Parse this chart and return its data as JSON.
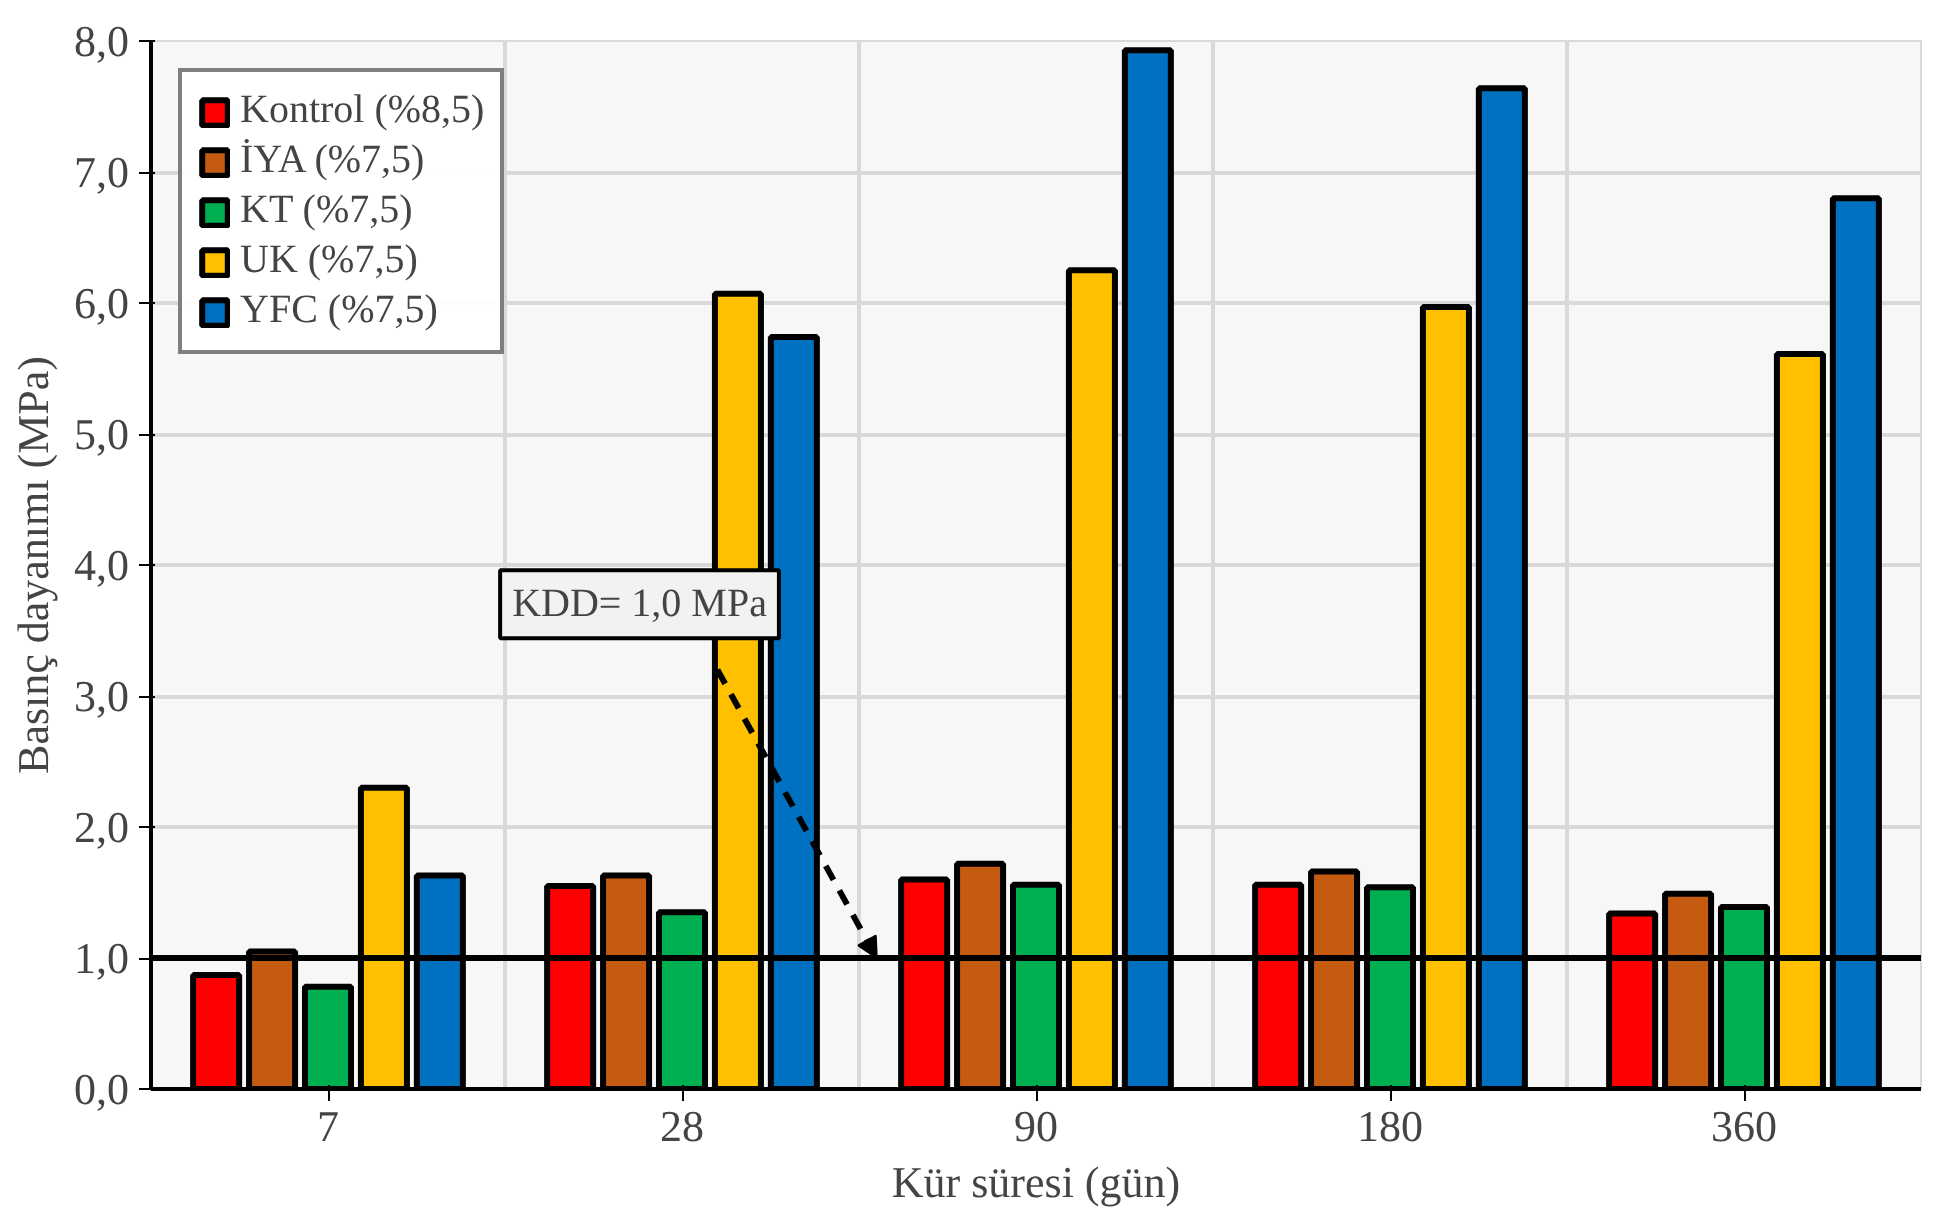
{
  "chart_data": {
    "type": "bar",
    "xlabel": "Kür süresi (gün)",
    "ylabel": "Basınç dayanımı (MPa)",
    "categories": [
      "7",
      "28",
      "90",
      "180",
      "360"
    ],
    "series": [
      {
        "name": "Kontrol (%8,5)",
        "color": "#ff0000",
        "values": [
          0.87,
          1.55,
          1.6,
          1.56,
          1.34
        ]
      },
      {
        "name": "İYA (%7,5)",
        "color": "#c55a11",
        "values": [
          1.05,
          1.63,
          1.72,
          1.66,
          1.49
        ]
      },
      {
        "name": "KT (%7,5)",
        "color": "#00b050",
        "values": [
          0.78,
          1.35,
          1.56,
          1.54,
          1.39
        ]
      },
      {
        "name": "UK (%7,5)",
        "color": "#ffc000",
        "values": [
          2.3,
          6.07,
          6.25,
          5.97,
          5.61
        ]
      },
      {
        "name": "YFC (%7,5)",
        "color": "#0070c0",
        "values": [
          1.63,
          5.74,
          7.93,
          7.64,
          6.8
        ]
      }
    ],
    "ylim": [
      0,
      8
    ],
    "yticks": [
      {
        "value": 0,
        "label": "0,0"
      },
      {
        "value": 1,
        "label": "1,0"
      },
      {
        "value": 2,
        "label": "2,0"
      },
      {
        "value": 3,
        "label": "3,0"
      },
      {
        "value": 4,
        "label": "4,0"
      },
      {
        "value": 5,
        "label": "5,0"
      },
      {
        "value": 6,
        "label": "6,0"
      },
      {
        "value": 7,
        "label": "7,0"
      },
      {
        "value": 8,
        "label": "8,0"
      }
    ],
    "ref_lines": [
      {
        "axis": "y",
        "value": 1.0,
        "label": "KDD= 1,0 MPa",
        "color": "#000000",
        "line_style": "solid"
      }
    ],
    "grid": true,
    "legend": "top left"
  }
}
